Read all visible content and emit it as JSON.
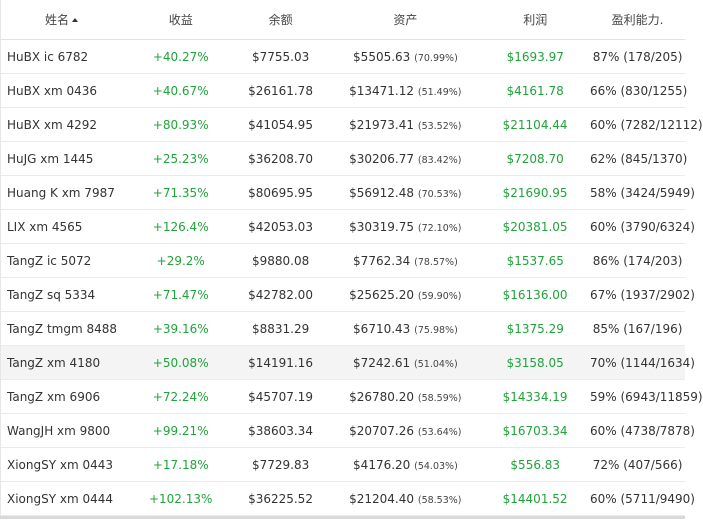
{
  "headers": {
    "name": "姓名",
    "return": "收益",
    "balance": "余额",
    "assets": "资产",
    "profit": "利润",
    "ratio": "盈利能力."
  },
  "rows": [
    {
      "name": "HuBX ic 6782",
      "return": "+40.27%",
      "balance": "$7755.03",
      "assets": "$5505.63",
      "assets_pct": "(70.99%)",
      "profit": "$1693.97",
      "ratio": "87% (178/205)"
    },
    {
      "name": "HuBX xm 0436",
      "return": "+40.67%",
      "balance": "$26161.78",
      "assets": "$13471.12",
      "assets_pct": "(51.49%)",
      "profit": "$4161.78",
      "ratio": "66% (830/1255)"
    },
    {
      "name": "HuBX xm 4292",
      "return": "+80.93%",
      "balance": "$41054.95",
      "assets": "$21973.41",
      "assets_pct": "(53.52%)",
      "profit": "$21104.44",
      "ratio": "60% (7282/12112)"
    },
    {
      "name": "HuJG xm 1445",
      "return": "+25.23%",
      "balance": "$36208.70",
      "assets": "$30206.77",
      "assets_pct": "(83.42%)",
      "profit": "$7208.70",
      "ratio": "62% (845/1370)"
    },
    {
      "name": "Huang K xm 7987",
      "return": "+71.35%",
      "balance": "$80695.95",
      "assets": "$56912.48",
      "assets_pct": "(70.53%)",
      "profit": "$21690.95",
      "ratio": "58% (3424/5949)"
    },
    {
      "name": "LIX xm 4565",
      "return": "+126.4%",
      "balance": "$42053.03",
      "assets": "$30319.75",
      "assets_pct": "(72.10%)",
      "profit": "$20381.05",
      "ratio": "60% (3790/6324)"
    },
    {
      "name": "TangZ ic 5072",
      "return": "+29.2%",
      "balance": "$9880.08",
      "assets": "$7762.34",
      "assets_pct": "(78.57%)",
      "profit": "$1537.65",
      "ratio": "86% (174/203)"
    },
    {
      "name": "TangZ sq 5334",
      "return": "+71.47%",
      "balance": "$42782.00",
      "assets": "$25625.20",
      "assets_pct": "(59.90%)",
      "profit": "$16136.00",
      "ratio": "67% (1937/2902)"
    },
    {
      "name": "TangZ tmgm 8488",
      "return": "+39.16%",
      "balance": "$8831.29",
      "assets": "$6710.43",
      "assets_pct": "(75.98%)",
      "profit": "$1375.29",
      "ratio": "85% (167/196)"
    },
    {
      "name": "TangZ xm 4180",
      "return": "+50.08%",
      "balance": "$14191.16",
      "assets": "$7242.61",
      "assets_pct": "(51.04%)",
      "profit": "$3158.05",
      "ratio": "70% (1144/1634)"
    },
    {
      "name": "TangZ xm 6906",
      "return": "+72.24%",
      "balance": "$45707.19",
      "assets": "$26780.20",
      "assets_pct": "(58.59%)",
      "profit": "$14334.19",
      "ratio": "59% (6943/11859)"
    },
    {
      "name": "WangJH xm 9800",
      "return": "+99.21%",
      "balance": "$38603.34",
      "assets": "$20707.26",
      "assets_pct": "(53.64%)",
      "profit": "$16703.34",
      "ratio": "60% (4738/7878)"
    },
    {
      "name": "XiongSY xm 0443",
      "return": "+17.18%",
      "balance": "$7729.83",
      "assets": "$4176.20",
      "assets_pct": "(54.03%)",
      "profit": "$556.83",
      "ratio": "72% (407/566)"
    },
    {
      "name": "XiongSY xm 0444",
      "return": "+102.13%",
      "balance": "$36225.52",
      "assets": "$21204.40",
      "assets_pct": "(58.53%)",
      "profit": "$14401.52",
      "ratio": "60% (5711/9490)"
    }
  ],
  "highlighted_row": 9,
  "colors": {
    "positive": "#21a33b",
    "row_highlight": "#f4f4f4"
  },
  "sort": {
    "column": "name",
    "direction": "ascending",
    "icon": "sort-up-icon"
  }
}
